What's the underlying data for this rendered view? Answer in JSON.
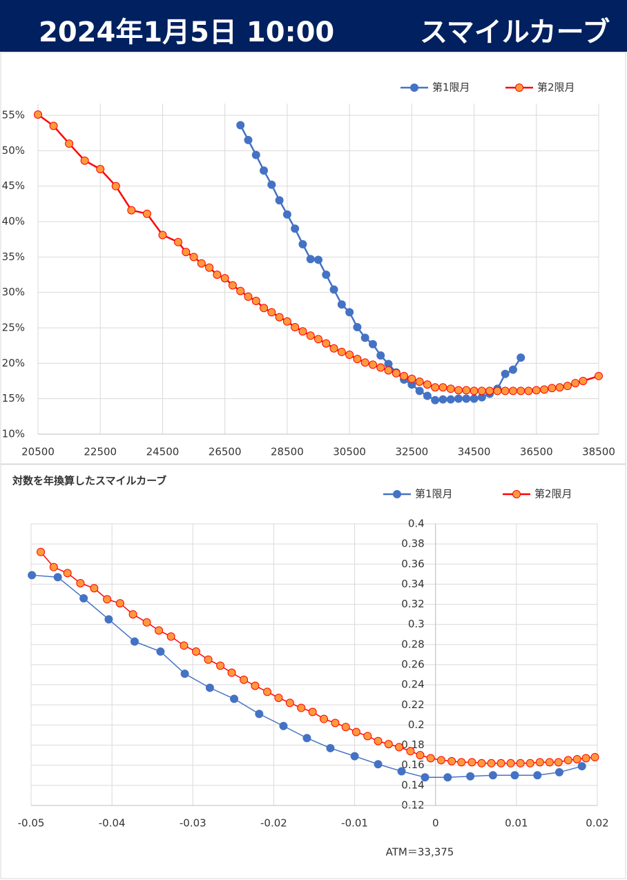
{
  "header": {
    "date": "2024年1月5日 10:00",
    "title": "スマイルカーブ"
  },
  "chart_data": [
    {
      "type": "line",
      "xlim": [
        20500,
        38500
      ],
      "xticks": [
        20500,
        22500,
        24500,
        26500,
        28500,
        30500,
        32500,
        34500,
        36500,
        38500
      ],
      "ylim": [
        10,
        55
      ],
      "yticks": [
        {
          "value": 10,
          "label": "10%"
        },
        {
          "value": 15,
          "label": "15%"
        },
        {
          "value": 20,
          "label": "20%"
        },
        {
          "value": 25,
          "label": "25%"
        },
        {
          "value": 30,
          "label": "30%"
        },
        {
          "value": 35,
          "label": "35%"
        },
        {
          "value": 40,
          "label": "40%"
        },
        {
          "value": 45,
          "label": "45%"
        },
        {
          "value": 50,
          "label": "50%"
        },
        {
          "value": 55,
          "label": "55%"
        }
      ],
      "grid": true,
      "legend": "top-right",
      "series": [
        {
          "name": "第1限月",
          "color": "#4472c4",
          "marker_fill": "#4472c4",
          "x": [
            27000,
            27250,
            27500,
            27750,
            28000,
            28250,
            28500,
            28750,
            29000,
            29250,
            29500,
            29750,
            30000,
            30250,
            30500,
            30750,
            31000,
            31250,
            31500,
            31750,
            32000,
            32250,
            32500,
            32750,
            33000,
            33250,
            33500,
            33750,
            34000,
            34250,
            34500,
            34750,
            35000,
            35250,
            35500,
            35750,
            36000
          ],
          "values": [
            53.6,
            51.5,
            49.4,
            47.2,
            45.2,
            43.0,
            41.0,
            39.0,
            36.8,
            34.7,
            34.6,
            32.5,
            30.4,
            28.3,
            27.2,
            25.1,
            23.6,
            22.7,
            21.1,
            19.9,
            18.7,
            17.7,
            17.0,
            16.1,
            15.4,
            14.8,
            14.9,
            14.9,
            15.0,
            15.0,
            15.0,
            15.2,
            15.7,
            16.4,
            18.5,
            19.1,
            20.8
          ]
        },
        {
          "name": "第2限月",
          "color": "#ff0000",
          "marker_fill": "#ff9a3c",
          "x": [
            20500,
            21000,
            21500,
            22000,
            22500,
            23000,
            23500,
            24000,
            24500,
            25000,
            25250,
            25500,
            25750,
            26000,
            26250,
            26500,
            26750,
            27000,
            27250,
            27500,
            27750,
            28000,
            28250,
            28500,
            28750,
            29000,
            29250,
            29500,
            29750,
            30000,
            30250,
            30500,
            30750,
            31000,
            31250,
            31500,
            31750,
            32000,
            32250,
            32500,
            32750,
            33000,
            33250,
            33500,
            33750,
            34000,
            34250,
            34500,
            34750,
            35000,
            35250,
            35500,
            35750,
            36000,
            36250,
            36500,
            36750,
            37000,
            37250,
            37500,
            37750,
            38000,
            38500
          ],
          "values": [
            55.1,
            53.5,
            51.0,
            48.6,
            47.4,
            45.0,
            41.6,
            41.1,
            38.1,
            37.1,
            35.7,
            35.0,
            34.1,
            33.5,
            32.5,
            32.0,
            31.0,
            30.2,
            29.4,
            28.8,
            27.8,
            27.2,
            26.5,
            25.9,
            25.1,
            24.5,
            23.9,
            23.4,
            22.8,
            22.1,
            21.6,
            21.2,
            20.6,
            20.1,
            19.8,
            19.4,
            19.0,
            18.6,
            18.2,
            17.8,
            17.4,
            17.0,
            16.6,
            16.6,
            16.4,
            16.2,
            16.2,
            16.1,
            16.1,
            16.1,
            16.1,
            16.1,
            16.1,
            16.1,
            16.1,
            16.2,
            16.3,
            16.5,
            16.6,
            16.8,
            17.2,
            17.5,
            18.2
          ]
        }
      ]
    },
    {
      "type": "line",
      "title": "対数を年換算したスマイルカーブ",
      "annotation": "ATM＝33,375",
      "xlim": [
        -0.05,
        0.02
      ],
      "xticks": [
        -0.05,
        -0.04,
        -0.03,
        -0.02,
        -0.01,
        0,
        0.01,
        0.02
      ],
      "ylim": [
        0.12,
        0.4
      ],
      "yticks": [
        0.12,
        0.14,
        0.16,
        0.18,
        0.2,
        0.22,
        0.24,
        0.26,
        0.28,
        0.3,
        0.32,
        0.34,
        0.36,
        0.38,
        0.4
      ],
      "grid": true,
      "legend": "top-right",
      "series": [
        {
          "name": "第1限月",
          "color": "#4472c4",
          "marker_fill": "#4472c4",
          "x": [
            -0.0499,
            -0.0467,
            -0.0435,
            -0.0404,
            -0.0372,
            -0.034,
            -0.031,
            -0.0279,
            -0.0249,
            -0.0218,
            -0.0188,
            -0.0159,
            -0.013,
            -0.01,
            -0.0071,
            -0.0042,
            -0.0013,
            0.0015,
            0.0043,
            0.0071,
            0.0098,
            0.0126,
            0.0153,
            0.0181
          ],
          "values": [
            0.349,
            0.347,
            0.326,
            0.305,
            0.283,
            0.273,
            0.251,
            0.237,
            0.226,
            0.211,
            0.199,
            0.187,
            0.177,
            0.169,
            0.161,
            0.154,
            0.148,
            0.148,
            0.149,
            0.15,
            0.15,
            0.15,
            0.153,
            0.159
          ]
        },
        {
          "name": "第2限月",
          "color": "#ff0000",
          "marker_fill": "#ff9a3c",
          "x": [
            -0.0488,
            -0.0472,
            -0.0455,
            -0.0439,
            -0.0422,
            -0.0406,
            -0.039,
            -0.0374,
            -0.0357,
            -0.0342,
            -0.0327,
            -0.0311,
            -0.0296,
            -0.0281,
            -0.0266,
            -0.0252,
            -0.0237,
            -0.0223,
            -0.0208,
            -0.0194,
            -0.018,
            -0.0166,
            -0.0152,
            -0.0138,
            -0.0124,
            -0.0111,
            -0.0098,
            -0.0084,
            -0.0071,
            -0.0058,
            -0.0045,
            -0.0031,
            -0.0019,
            -0.0006,
            0.0007,
            0.002,
            0.0032,
            0.0045,
            0.0057,
            0.0069,
            0.0081,
            0.0093,
            0.0105,
            0.0117,
            0.0129,
            0.0141,
            0.0152,
            0.0164,
            0.0175,
            0.0186,
            0.0197
          ],
          "values": [
            0.372,
            0.357,
            0.351,
            0.341,
            0.336,
            0.325,
            0.321,
            0.31,
            0.302,
            0.294,
            0.288,
            0.279,
            0.273,
            0.265,
            0.259,
            0.252,
            0.245,
            0.239,
            0.233,
            0.227,
            0.222,
            0.217,
            0.213,
            0.206,
            0.202,
            0.198,
            0.193,
            0.189,
            0.184,
            0.181,
            0.178,
            0.174,
            0.17,
            0.167,
            0.165,
            0.164,
            0.163,
            0.163,
            0.162,
            0.162,
            0.162,
            0.162,
            0.162,
            0.162,
            0.163,
            0.163,
            0.163,
            0.165,
            0.166,
            0.167,
            0.168
          ]
        }
      ]
    }
  ]
}
